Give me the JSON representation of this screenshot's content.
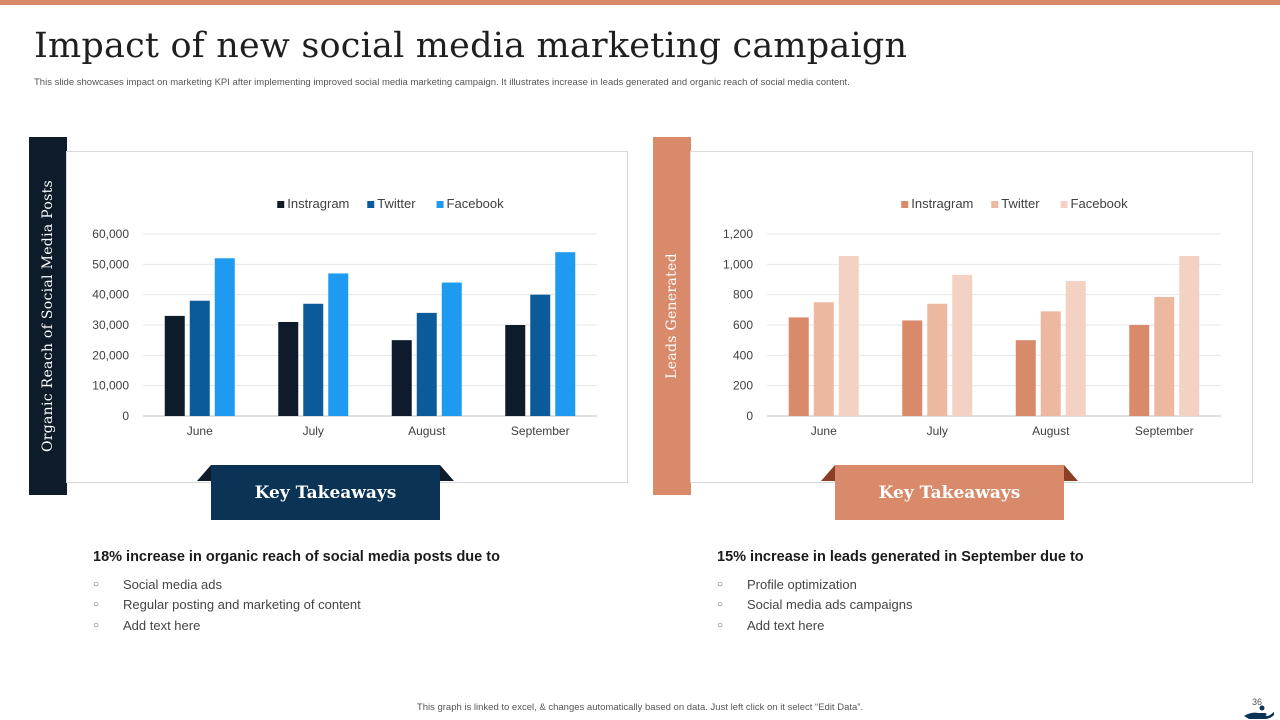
{
  "slide": {
    "title": "Impact of new social media marketing campaign",
    "subtitle": "This slide showcases impact on marketing KPI after implementing improved social media marketing campaign. It illustrates increase in leads generated and organic reach of social media content.",
    "footer": "This graph is linked to excel, & changes automatically based on data. Just left click on it select “Edit Data”.",
    "page_number": "36"
  },
  "left_panel": {
    "side_label": "Organic Reach of Social Media Posts",
    "key_takeaways_label": "Key Takeaways",
    "heading": "18% increase in organic reach of social media posts due to",
    "bullets": [
      "Social media ads",
      "Regular posting and marketing of content",
      "Add text here"
    ],
    "bullet_symbol": "○"
  },
  "right_panel": {
    "side_label": "Leads Generated",
    "key_takeaways_label": "Key Takeaways",
    "heading": "15% increase in leads generated in September due to",
    "bullets": [
      "Profile optimization",
      "Social media ads campaigns",
      "Add text here"
    ],
    "bullet_symbol": "○"
  },
  "colors": {
    "accent_orange": "#D98A6A",
    "navy": "#0D1B2A",
    "ribbon_blue": "#0A3355"
  },
  "chart_data": [
    {
      "type": "bar",
      "categories": [
        "June",
        "July",
        "August",
        "September"
      ],
      "series": [
        {
          "name": "Instragram",
          "values": [
            33000,
            31000,
            25000,
            30000
          ],
          "color": "#0D1B2A"
        },
        {
          "name": "Twitter",
          "values": [
            38000,
            37000,
            34000,
            40000
          ],
          "color": "#0B5A99"
        },
        {
          "name": "Facebook",
          "values": [
            52000,
            47000,
            44000,
            54000
          ],
          "color": "#1E9BF0"
        }
      ],
      "ylim": [
        0,
        60000
      ],
      "yticks": [
        0,
        10000,
        20000,
        30000,
        40000,
        50000,
        60000
      ],
      "ytick_labels": [
        "0",
        "10,000",
        "20,000",
        "30,000",
        "40,000",
        "50,000",
        "60,000"
      ],
      "legend": "top-center",
      "grid": true
    },
    {
      "type": "bar",
      "categories": [
        "June",
        "July",
        "August",
        "September"
      ],
      "series": [
        {
          "name": "Instragram",
          "values": [
            650,
            630,
            500,
            600
          ],
          "color": "#D98A6A"
        },
        {
          "name": "Twitter",
          "values": [
            750,
            740,
            690,
            785
          ],
          "color": "#EDB8A0"
        },
        {
          "name": "Facebook",
          "values": [
            1055,
            930,
            890,
            1055
          ],
          "color": "#F3D2C3"
        }
      ],
      "ylim": [
        0,
        1200
      ],
      "yticks": [
        0,
        200,
        400,
        600,
        800,
        1000,
        1200
      ],
      "ytick_labels": [
        "0",
        "200",
        "400",
        "600",
        "800",
        "1,000",
        "1,200"
      ],
      "legend": "top-center",
      "grid": true
    }
  ]
}
